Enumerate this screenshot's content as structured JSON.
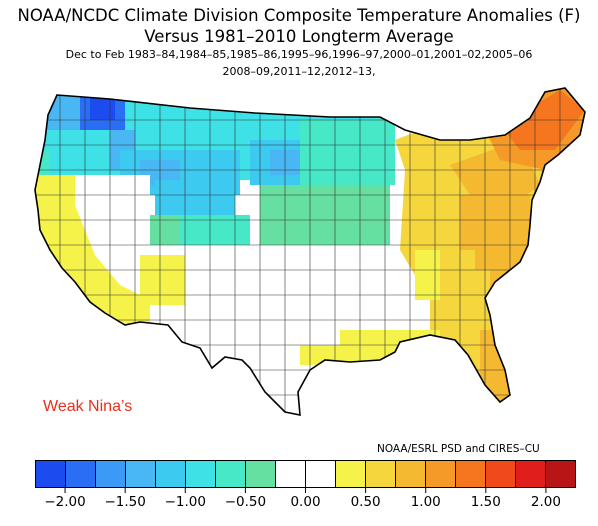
{
  "title": {
    "line1": "NOAA/NCDC Climate Division Composite Temperature Anomalies (F)",
    "line2": "Versus 1981–2010 Longterm Average",
    "line3": "Dec to Feb   1983–84,1984–85,1985–86,1995–96,1996–97,2000–01,2001–02,2005–06",
    "line4": "2008–09,2011–12,2012–13,"
  },
  "annotation": "Weak Nina’s",
  "annotation_color": "#e8301c",
  "credit": "NOAA/ESRL PSD and CIRES–CU",
  "colorbar": {
    "colors": [
      "#1c4bf0",
      "#2a6ef5",
      "#3a9af5",
      "#4ab7f5",
      "#3dcaf0",
      "#3de1e6",
      "#46e8c8",
      "#66e0a0",
      "#ffffff",
      "#ffffff",
      "#f5f34a",
      "#f5d63c",
      "#f5b931",
      "#f59a28",
      "#f5761f",
      "#f04a1c",
      "#e01e1c",
      "#b81616"
    ],
    "tick_labels": [
      "−2.00",
      "−1.50",
      "−1.00",
      "−0.50",
      "0.00",
      "0.50",
      "1.00",
      "1.50",
      "2.00"
    ]
  },
  "region_anomalies": {
    "washington_interior": -2.0,
    "washington_west": -1.5,
    "oregon_idaho": -1.0,
    "montana": -1.0,
    "wyoming": -1.25,
    "dakotas": -1.0,
    "minnesota_wisconsin": -0.5,
    "nebraska_kansas_iowa": -0.25,
    "california": 0.25,
    "nevada_utah": 0.0,
    "colorado": -0.5,
    "southwest": 0.0,
    "texas_oklahoma": 0.0,
    "gulf_coast": 0.25,
    "florida": 0.5,
    "southeast": 0.75,
    "ohio_valley": 0.5,
    "mid_atlantic": 1.0,
    "northeast": 1.5,
    "new_england_north": 1.25
  }
}
